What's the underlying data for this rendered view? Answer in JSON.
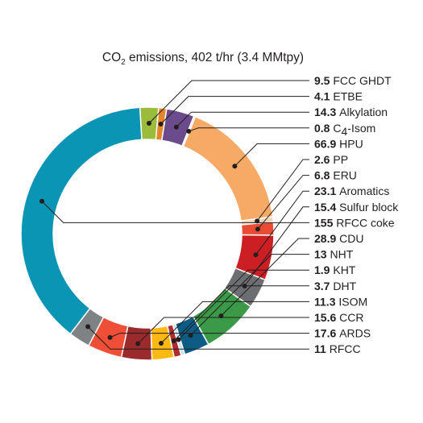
{
  "chart_data": {
    "type": "pie",
    "title_main": "CO",
    "title_sub": "2",
    "title_rest": " emissions, 402 t/hr (3.4 MMtpy)",
    "slices": [
      {
        "value": 9.5,
        "value_label": "9.5",
        "name": "FCC GHDT",
        "color": "#9bbb3b"
      },
      {
        "value": 4.1,
        "value_label": "4.1",
        "name": "ETBE",
        "color": "#e5862a"
      },
      {
        "value": 14.3,
        "value_label": "14.3",
        "name": "Alkylation",
        "color": "#6b4b8c"
      },
      {
        "value": 0.8,
        "value_label": "0.8",
        "name_pre": "C",
        "name_sub": "4",
        "name_post": "-Isom",
        "color": "#b3d1ea"
      },
      {
        "value": 66.9,
        "value_label": "66.9",
        "name": "HPU",
        "color": "#f7aa65"
      },
      {
        "value": 2.6,
        "value_label": "2.6",
        "name": "PP",
        "color": "#f0d5b8"
      },
      {
        "value": 6.8,
        "value_label": "6.8",
        "name": "ERU",
        "color": "#ea4b34"
      },
      {
        "value": 23.1,
        "value_label": "23.1",
        "name": "Aromatics",
        "color": "#cc1f24"
      },
      {
        "value": 15.4,
        "value_label": "15.4",
        "name": "Sulfur block",
        "color": "#6d6e71"
      },
      {
        "value": 28.9,
        "value_label": "28.9",
        "name": "CDU",
        "color": "#3a9a47"
      },
      {
        "value": 13,
        "value_label": "13",
        "name": "NHT",
        "color": "#0d5c85"
      },
      {
        "value": 1.9,
        "value_label": "1.9",
        "name": "KHT",
        "color": "#c5e3ef"
      },
      {
        "value": 3.7,
        "value_label": "3.7",
        "name": "DHT",
        "color": "#b02a2e"
      },
      {
        "value": 11.3,
        "value_label": "11.3",
        "name": "ISOM",
        "color": "#fdb913"
      },
      {
        "value": 15.6,
        "value_label": "15.6",
        "name": "CCR",
        "color": "#9b2a2d"
      },
      {
        "value": 17.6,
        "value_label": "17.6",
        "name": "ARDS",
        "color": "#ef4e37"
      },
      {
        "value": 11,
        "value_label": "11",
        "name": "RFCC",
        "color": "#7f8285"
      },
      {
        "value": 155,
        "value_label": "155",
        "name": "RFCC coke",
        "color": "#0a95b5"
      }
    ]
  }
}
